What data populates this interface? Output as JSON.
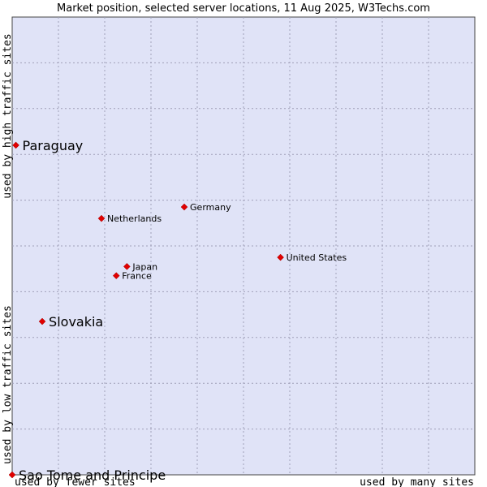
{
  "chart_data": {
    "type": "scatter",
    "title": "Market position, selected server locations, 11 Aug 2025, W3Techs.com",
    "xlabel_low": "used by fewer sites",
    "xlabel_high": "used by many sites",
    "ylabel_low": "used by low traffic sites",
    "ylabel_high": "used by high traffic sites",
    "grid": true,
    "xlim": [
      0,
      10
    ],
    "ylim": [
      0,
      10
    ],
    "points": [
      {
        "name": "Paraguay",
        "x": 0.08,
        "y": 7.2,
        "emphasis": true
      },
      {
        "name": "Netherlands",
        "x": 1.93,
        "y": 5.6,
        "emphasis": false
      },
      {
        "name": "Germany",
        "x": 3.72,
        "y": 5.85,
        "emphasis": false
      },
      {
        "name": "United States",
        "x": 5.8,
        "y": 4.75,
        "emphasis": false
      },
      {
        "name": "Japan",
        "x": 2.48,
        "y": 4.55,
        "emphasis": false
      },
      {
        "name": "France",
        "x": 2.25,
        "y": 4.35,
        "emphasis": false
      },
      {
        "name": "Slovakia",
        "x": 0.65,
        "y": 3.35,
        "emphasis": true
      },
      {
        "name": "Sao Tome and Principe",
        "x": 0.0,
        "y": 0.0,
        "emphasis": true
      }
    ]
  }
}
